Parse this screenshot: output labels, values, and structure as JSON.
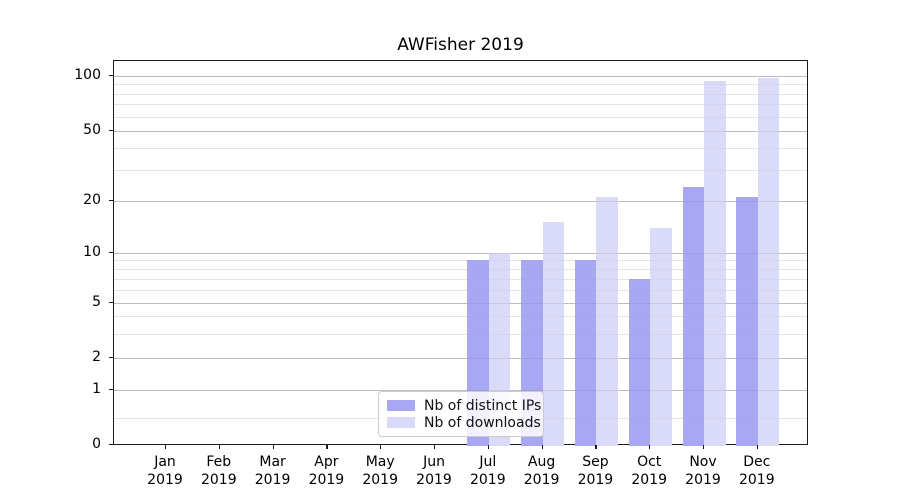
{
  "title": "AWFisher 2019",
  "chart_data": {
    "type": "bar",
    "title": "AWFisher 2019",
    "xlabel": "",
    "ylabel": "",
    "categories": [
      "Jan 2019",
      "Feb 2019",
      "Mar 2019",
      "Apr 2019",
      "May 2019",
      "Jun 2019",
      "Jul 2019",
      "Aug 2019",
      "Sep 2019",
      "Oct 2019",
      "Nov 2019",
      "Dec 2019"
    ],
    "series": [
      {
        "name": "Nb of distinct IPs",
        "color": "#a7a7f4",
        "values": [
          0,
          0,
          0,
          0,
          0,
          0,
          9,
          9,
          9,
          7,
          24,
          21
        ]
      },
      {
        "name": "Nb of downloads",
        "color": "#dadaf9",
        "values": [
          0,
          0,
          0,
          0,
          0,
          0,
          10,
          15,
          21,
          14,
          94,
          97
        ]
      }
    ],
    "y_axis": {
      "scale": "log-like (symlog) with 0 baseline",
      "tick_values": [
        0,
        1,
        2,
        5,
        10,
        20,
        50,
        100
      ],
      "tick_labels": [
        "0",
        "1",
        "2",
        "5",
        "10",
        "20",
        "50",
        "100"
      ],
      "minor_tick_values": [
        0.5,
        3,
        4,
        6,
        7,
        8,
        9,
        30,
        40,
        60,
        70,
        80,
        90
      ],
      "ylim": [
        0,
        120
      ]
    },
    "grid": true,
    "legend": {
      "position": "lower center",
      "entries": [
        "Nb of distinct IPs",
        "Nb of downloads"
      ]
    }
  },
  "colors": {
    "bar_dark": "#a7a7f4",
    "bar_light": "#dadaf9",
    "grid_major": "#c9c9c9",
    "grid_minor": "#e9e9e9",
    "spine": "#1a1a1a",
    "background": "#ffffff"
  }
}
